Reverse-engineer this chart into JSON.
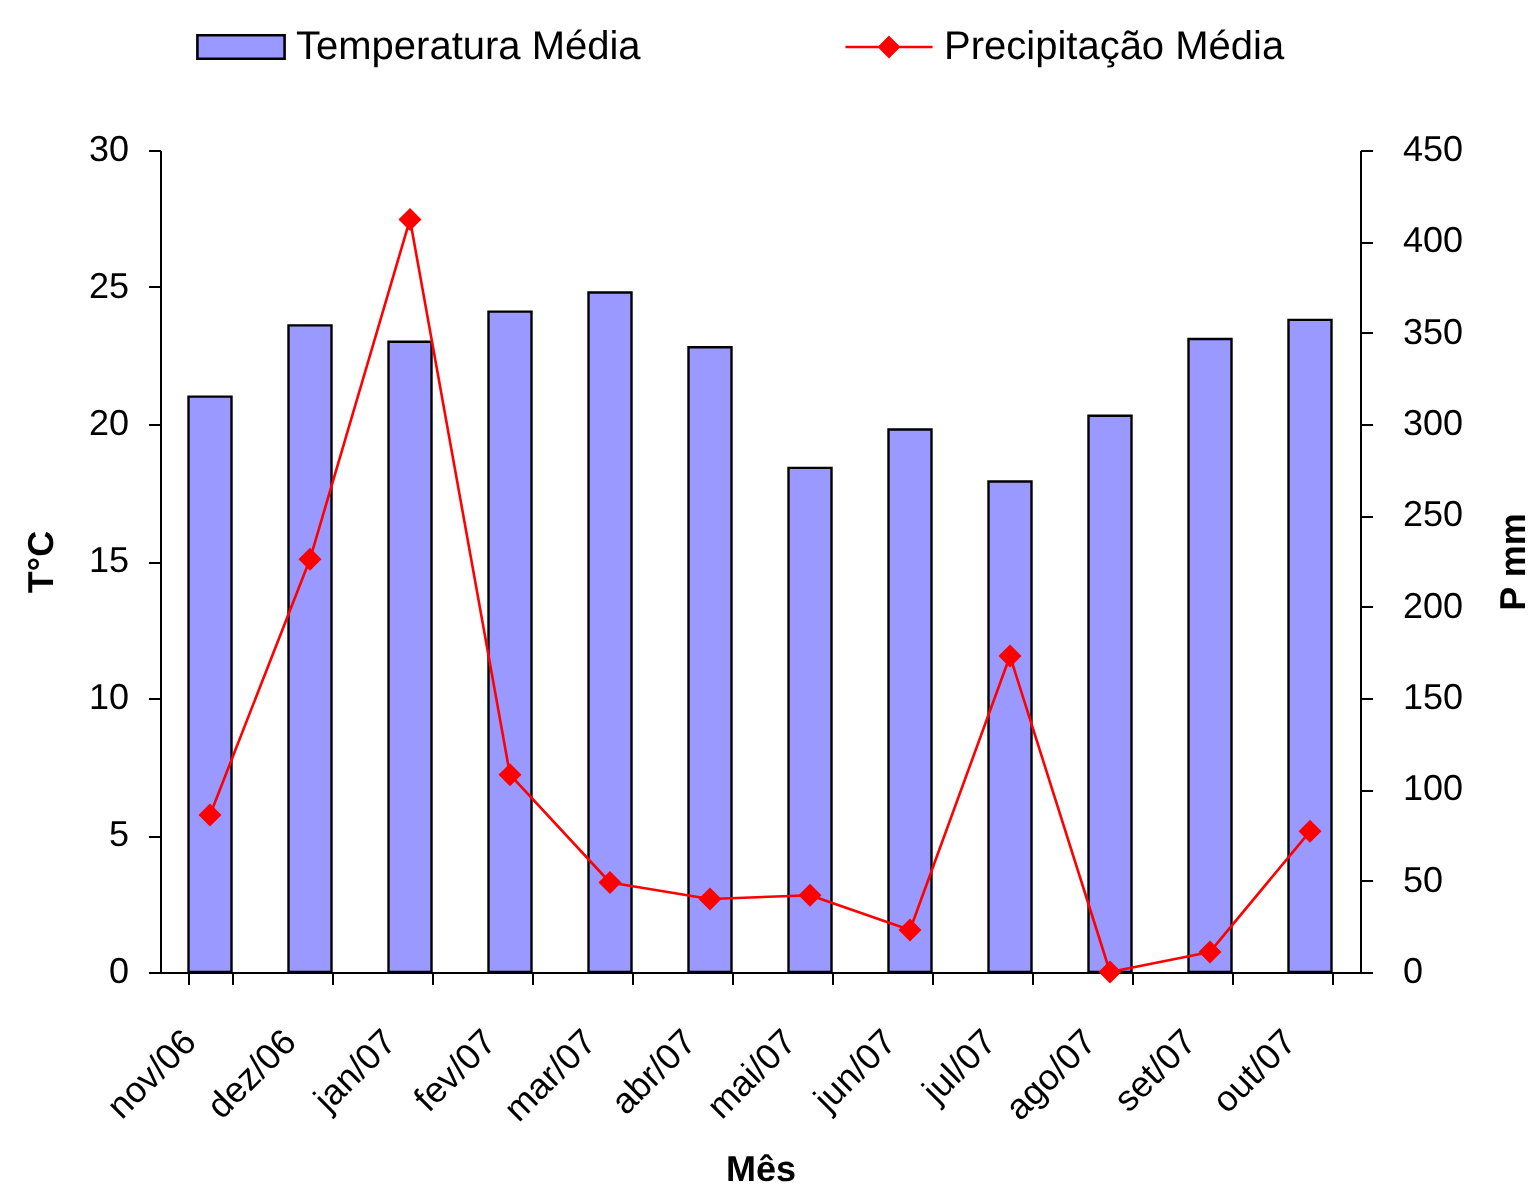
{
  "chart_data": {
    "type": "bar",
    "xlabel": "Mês",
    "ylabel": "T°C",
    "y2label": "P mm",
    "categories": [
      "nov/06",
      "dez/06",
      "jan/07",
      "fev/07",
      "mar/07",
      "abr/07",
      "mai/07",
      "jun/07",
      "jul/07",
      "ago/07",
      "set/07",
      "out/07"
    ],
    "series": [
      {
        "name": "Temperatura Média",
        "color": "#9999ff",
        "values": [
          21.0,
          23.6,
          23.0,
          24.1,
          24.8,
          22.8,
          18.4,
          19.8,
          17.9,
          20.3,
          23.1,
          23.8
        ]
      },
      {
        "name": "Precipitação Média",
        "type": "line",
        "axis": "y2",
        "color": "#ff0000",
        "marker": "diamond",
        "line_style": "solid",
        "values": [
          86,
          226,
          412,
          108,
          49,
          40,
          42,
          23,
          173,
          0,
          11,
          77
        ]
      }
    ],
    "ylim": [
      0,
      30
    ],
    "yticks": [
      0,
      5,
      10,
      15,
      20,
      25,
      30
    ],
    "y2lim": [
      0,
      450
    ],
    "y2ticks": [
      0,
      50,
      100,
      150,
      200,
      250,
      300,
      350,
      400,
      450
    ],
    "grid": false,
    "legend": "top"
  }
}
